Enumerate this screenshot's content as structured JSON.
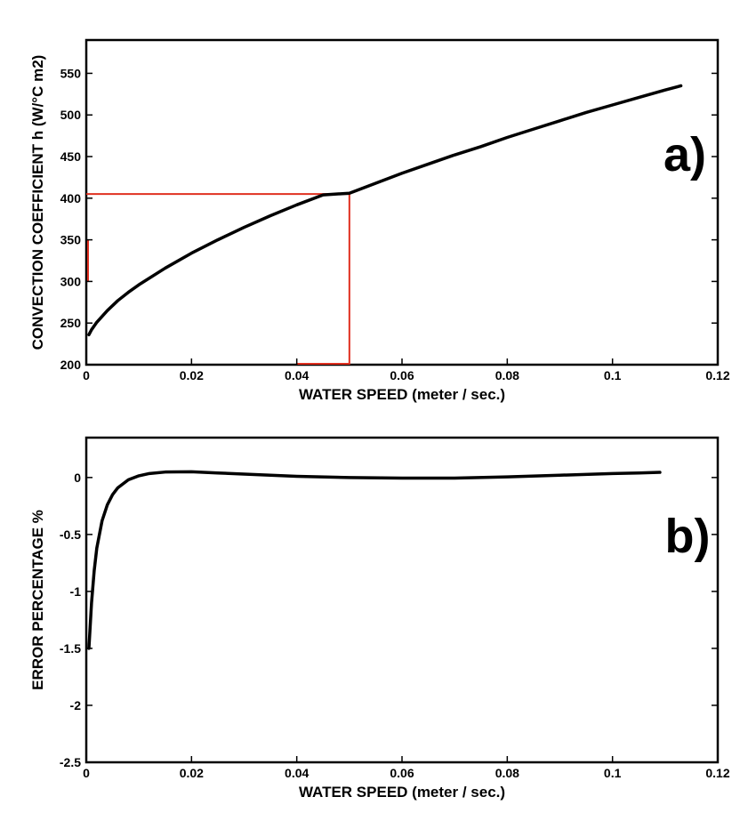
{
  "chart_data": [
    {
      "id": "a",
      "type": "line",
      "panel_tag": "a)",
      "xlabel": "WATER SPEED  (meter / sec.)",
      "ylabel": "CONVECTION COEFFICIENT  h  (W/°C m2)",
      "xlim": [
        0,
        0.12
      ],
      "ylim": [
        200,
        590
      ],
      "xticks": [
        0,
        0.02,
        0.04,
        0.06,
        0.08,
        0.1,
        0.12
      ],
      "xtick_labels": [
        "0",
        "0.02",
        "0.04",
        "0.06",
        "0.08",
        "0.1",
        "0.12"
      ],
      "yticks": [
        200,
        250,
        300,
        350,
        400,
        450,
        500,
        550
      ],
      "ytick_labels": [
        "200",
        "250",
        "300",
        "350",
        "400",
        "450",
        "500",
        "550"
      ],
      "series": [
        {
          "name": "h",
          "color": "#000000",
          "x": [
            0.0005,
            0.001,
            0.002,
            0.004,
            0.006,
            0.008,
            0.01,
            0.015,
            0.02,
            0.025,
            0.03,
            0.035,
            0.04,
            0.045,
            0.05,
            0.055,
            0.06,
            0.065,
            0.07,
            0.075,
            0.08,
            0.085,
            0.09,
            0.095,
            0.1,
            0.105,
            0.11,
            0.113
          ],
          "y": [
            236,
            242,
            251,
            265,
            277,
            287,
            296,
            316,
            334,
            350,
            365,
            379,
            392,
            404,
            406,
            418,
            430,
            441,
            452,
            462,
            473,
            483,
            493,
            503,
            512,
            521,
            530,
            535
          ]
        }
      ],
      "guides": {
        "color": "#e03020",
        "x": 0.05,
        "y": 405
      }
    },
    {
      "id": "b",
      "type": "line",
      "panel_tag": "b)",
      "xlabel": "WATER SPEED  (meter / sec.)",
      "ylabel": "ERROR PERCENTAGE %",
      "xlim": [
        0,
        0.12
      ],
      "ylim": [
        -2.5,
        0.35
      ],
      "xticks": [
        0,
        0.02,
        0.04,
        0.06,
        0.08,
        0.1,
        0.12
      ],
      "xtick_labels": [
        "0",
        "0.02",
        "0.04",
        "0.06",
        "0.08",
        "0.1",
        "0.12"
      ],
      "yticks": [
        -2.5,
        -2,
        -1.5,
        -1,
        -0.5,
        0
      ],
      "ytick_labels": [
        "-2.5",
        "-2",
        "-1.5",
        "-1",
        "-0.5",
        "0"
      ],
      "series": [
        {
          "name": "error",
          "color": "#000000",
          "x": [
            0.0005,
            0.001,
            0.0015,
            0.002,
            0.003,
            0.004,
            0.005,
            0.006,
            0.008,
            0.01,
            0.012,
            0.015,
            0.02,
            0.025,
            0.03,
            0.04,
            0.05,
            0.06,
            0.07,
            0.08,
            0.09,
            0.1,
            0.105,
            0.109
          ],
          "y": [
            -1.5,
            -1.1,
            -0.82,
            -0.62,
            -0.38,
            -0.24,
            -0.15,
            -0.09,
            -0.02,
            0.015,
            0.035,
            0.048,
            0.05,
            0.04,
            0.03,
            0.01,
            0.0,
            -0.005,
            -0.005,
            0.005,
            0.02,
            0.035,
            0.04,
            0.045
          ]
        }
      ]
    }
  ]
}
